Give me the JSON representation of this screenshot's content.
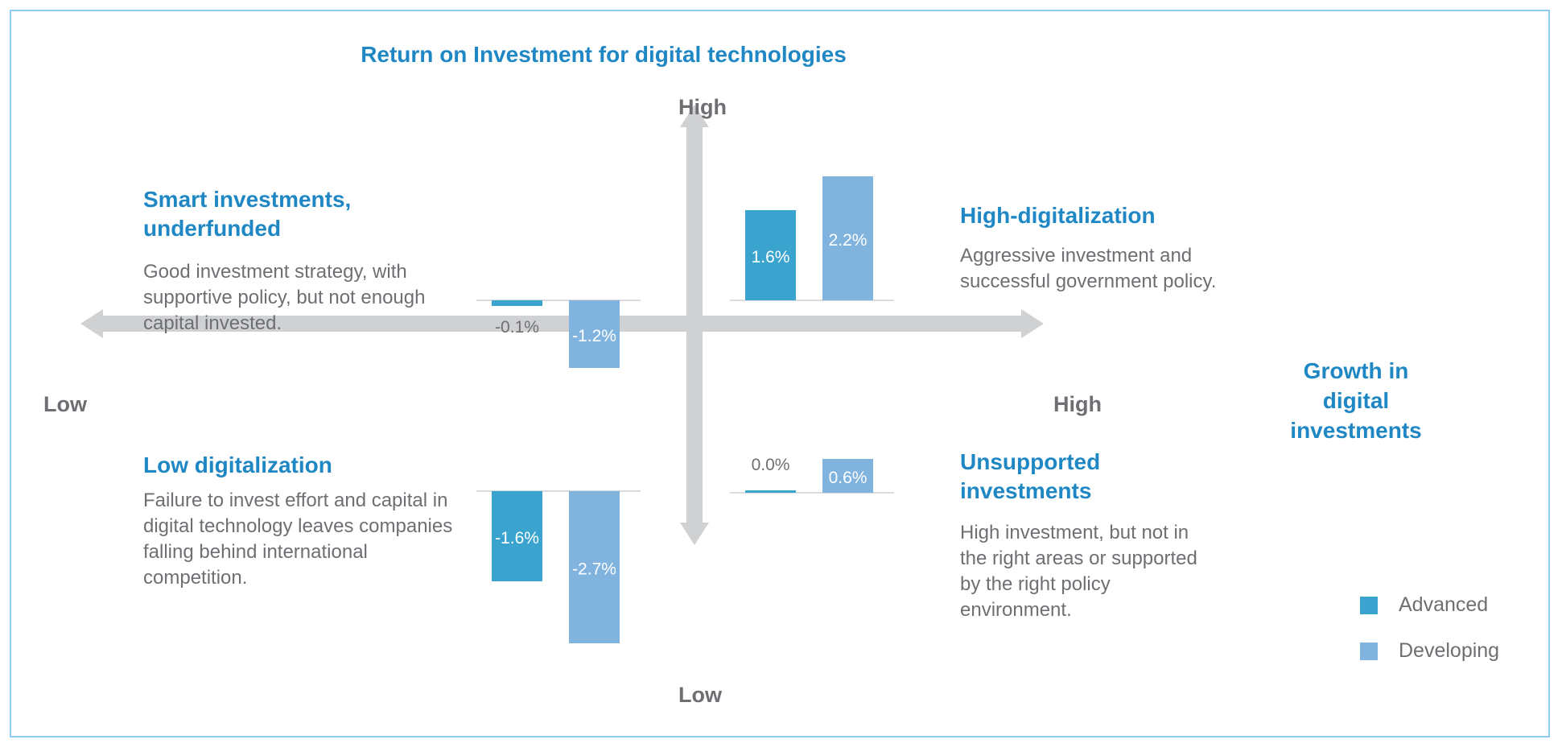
{
  "colors": {
    "advanced": "#3aa4cf",
    "developing": "#80b3de",
    "axis": "#d0d1d3",
    "heading": "#1f87c4",
    "text": "#6d6f73"
  },
  "chart_data": {
    "type": "bar",
    "title": "Return on Investment for digital technologies",
    "ylabel_high": "High",
    "ylabel_low": "Low",
    "xlabel": "Growth in digital investments",
    "xlabel_high": "High",
    "xlabel_low": "Low",
    "legend_placement": "bottom-right",
    "series_names": [
      "Advanced",
      "Developing"
    ],
    "quadrants": [
      {
        "id": "top-left",
        "heading": "Smart investments, underfunded",
        "body": "Good investment strategy, with supportive policy, but not enough capital invested.",
        "values": [
          -0.1,
          -1.2
        ],
        "labels": [
          "-0.1%",
          "-1.2%"
        ]
      },
      {
        "id": "top-right",
        "heading": "High-digitalization",
        "body": "Aggressive investment and successful government policy.",
        "values": [
          1.6,
          2.2
        ],
        "labels": [
          "1.6%",
          "2.2%"
        ]
      },
      {
        "id": "bottom-left",
        "heading": "Low digitalization",
        "body": "Failure to invest effort and capital in digital technology leaves companies falling behind international competition.",
        "values": [
          -1.6,
          -2.7
        ],
        "labels": [
          "-1.6%",
          "-2.7%"
        ]
      },
      {
        "id": "bottom-right",
        "heading": "Unsupported investments",
        "body": "High investment, but not in the right areas or supported by the right policy environment.",
        "values": [
          0.0,
          0.6
        ],
        "labels": [
          "0.0%",
          "0.6%"
        ]
      }
    ]
  }
}
